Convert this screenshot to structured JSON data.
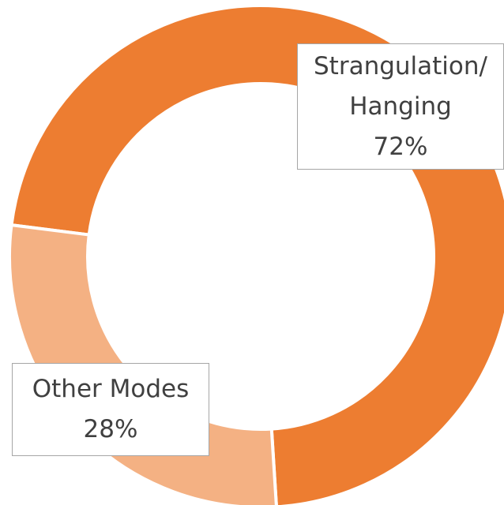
{
  "chart_data": {
    "type": "donut",
    "categories": [
      "Strangulation/ Hanging",
      "Other Modes"
    ],
    "values": [
      72,
      28
    ],
    "value_labels": [
      "72%",
      "28%"
    ],
    "colors": [
      "#ED7D31",
      "#F4B183"
    ]
  }
}
